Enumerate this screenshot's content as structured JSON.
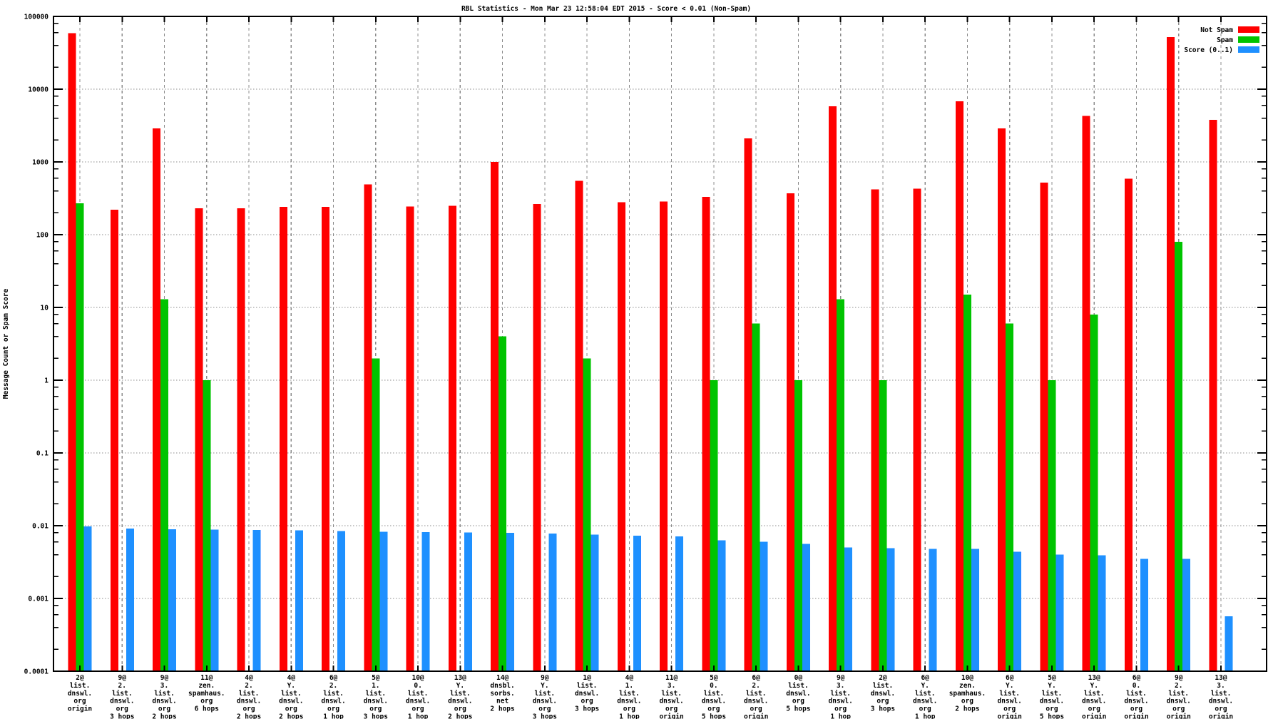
{
  "window": {
    "background": "#ffffff"
  },
  "chart_data": {
    "type": "bar",
    "title": "RBL Statistics - Mon Mar 23 12:58:04 EDT 2015 - Score < 0.01 (Non-Spam)",
    "ylabel": "Message Count or Spam Score",
    "xlabel": "",
    "y_scale": "log",
    "ylim": [
      0.0001,
      100000
    ],
    "grid": true,
    "legend_position": "top-right-inside",
    "y_ticks": [
      "100000",
      "10000",
      "1000",
      "100",
      "10",
      "1",
      "0.1",
      "0.01",
      "0.001",
      "0.0001"
    ],
    "series": [
      {
        "name": "Not Spam",
        "color": "#ff0000",
        "values": [
          59000,
          220,
          2900,
          230,
          230,
          240,
          240,
          490,
          245,
          250,
          1000,
          265,
          550,
          280,
          285,
          330,
          2100,
          370,
          5800,
          420,
          430,
          6800,
          2900,
          520,
          4300,
          590,
          52000,
          3800
        ]
      },
      {
        "name": "Spam",
        "color": "#00c400",
        "values": [
          270,
          null,
          13,
          1,
          null,
          null,
          null,
          2,
          null,
          null,
          4,
          null,
          2,
          null,
          null,
          1,
          6,
          1,
          13,
          1,
          null,
          15,
          6,
          1,
          8,
          null,
          80,
          null
        ]
      },
      {
        "name": "Score (0..1)",
        "color": "#1e90ff",
        "values": [
          0.0098,
          0.0091,
          0.0089,
          0.0088,
          0.0087,
          0.0086,
          0.0084,
          0.0083,
          0.0082,
          0.0081,
          0.008,
          0.0078,
          0.0075,
          0.0073,
          0.0071,
          0.0063,
          0.006,
          0.0056,
          0.005,
          0.0049,
          0.0048,
          0.0048,
          0.0044,
          0.004,
          0.0039,
          0.0035,
          0.0035,
          0.00057
        ]
      }
    ],
    "categories": [
      [
        "2@",
        "list.",
        "dnswl.",
        "org",
        "origin"
      ],
      [
        "9@",
        "2.",
        "list.",
        "dnswl.",
        "org",
        "3 hops"
      ],
      [
        "9@",
        "3.",
        "list.",
        "dnswl.",
        "org",
        "2 hops"
      ],
      [
        "11@",
        "zen.",
        "spamhaus.",
        "org",
        "6 hops"
      ],
      [
        "4@",
        "2.",
        "list.",
        "dnswl.",
        "org",
        "2 hops"
      ],
      [
        "4@",
        "Y.",
        "list.",
        "dnswl.",
        "org",
        "2 hops"
      ],
      [
        "6@",
        "2.",
        "list.",
        "dnswl.",
        "org",
        "1 hop"
      ],
      [
        "5@",
        "1.",
        "list.",
        "dnswl.",
        "org",
        "3 hops"
      ],
      [
        "10@",
        "0.",
        "list.",
        "dnswl.",
        "org",
        "1 hop"
      ],
      [
        "13@",
        "Y.",
        "list.",
        "dnswl.",
        "org",
        "2 hops"
      ],
      [
        "14@",
        "dnsbl.",
        "sorbs.",
        "net",
        "2 hops"
      ],
      [
        "9@",
        "Y.",
        "list.",
        "dnswl.",
        "org",
        "3 hops"
      ],
      [
        "1@",
        "list.",
        "dnswl.",
        "org",
        "3 hops"
      ],
      [
        "4@",
        "1.",
        "list.",
        "dnswl.",
        "org",
        "1 hop"
      ],
      [
        "11@",
        "3.",
        "list.",
        "dnswl.",
        "org",
        "origin"
      ],
      [
        "5@",
        "0.",
        "list.",
        "dnswl.",
        "org",
        "5 hops"
      ],
      [
        "6@",
        "2.",
        "list.",
        "dnswl.",
        "org",
        "origin"
      ],
      [
        "0@",
        "list.",
        "dnswl.",
        "org",
        "5 hops"
      ],
      [
        "9@",
        "3.",
        "list.",
        "dnswl.",
        "org",
        "1 hop"
      ],
      [
        "2@",
        "list.",
        "dnswl.",
        "org",
        "3 hops"
      ],
      [
        "6@",
        "Y.",
        "list.",
        "dnswl.",
        "org",
        "1 hop"
      ],
      [
        "10@",
        "zen.",
        "spamhaus.",
        "org",
        "2 hops"
      ],
      [
        "6@",
        "Y.",
        "list.",
        "dnswl.",
        "org",
        "origin"
      ],
      [
        "5@",
        "Y.",
        "list.",
        "dnswl.",
        "org",
        "5 hops"
      ],
      [
        "13@",
        "Y.",
        "list.",
        "dnswl.",
        "org",
        "origin"
      ],
      [
        "6@",
        "0.",
        "list.",
        "dnswl.",
        "org",
        "origin"
      ],
      [
        "9@",
        "2.",
        "list.",
        "dnswl.",
        "org",
        "origin"
      ],
      [
        "13@",
        "3.",
        "list.",
        "dnswl.",
        "org",
        "origin"
      ]
    ]
  }
}
